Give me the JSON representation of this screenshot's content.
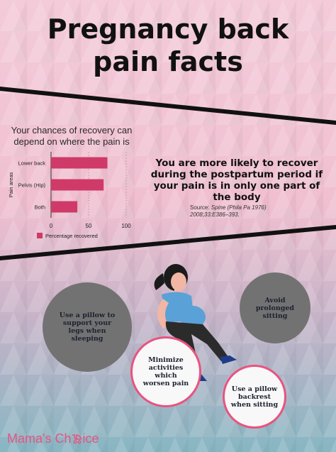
{
  "title": {
    "line1": "Pregnancy back",
    "line2": "pain facts"
  },
  "colors": {
    "bar": "#cf3a68",
    "accent": "#e9537f",
    "gradient_top": "#f0c9d7",
    "gradient_mid": "#cfb6c9",
    "gradient_bottom": "#8fb7c4",
    "dark_circle": "#727272",
    "light_circle": "#f8f8f8"
  },
  "chart_heading": {
    "line1": "Your chances of recovery can",
    "line2": "depend on where the pain is"
  },
  "chart_data": {
    "type": "bar",
    "orientation": "horizontal",
    "categories": [
      "Lower back",
      "Pelvis (Hip)",
      "Both"
    ],
    "values": [
      75,
      70,
      35
    ],
    "ylabel": "Pain areas",
    "xlabel": "",
    "xlim": [
      0,
      100
    ],
    "xticks": [
      "0",
      "50",
      "100"
    ],
    "grid": true,
    "series": [
      {
        "name": "Percentage recovered",
        "values": [
          75,
          70,
          35
        ]
      }
    ],
    "legend": "bottom"
  },
  "fact": {
    "line1": "You are more likely to recover",
    "line2": "during the postpartum period if",
    "line3": "your pain is in only one part of",
    "line4": "the body"
  },
  "source": {
    "label": "Source:",
    "journal": "Spine (Phila Pa 1976)",
    "citation": "2008;33:E386–393."
  },
  "tips": {
    "pillow_legs": {
      "line1": "Use a pillow to",
      "line2": "support your",
      "line3": "legs when",
      "line4": "sleeping"
    },
    "avoid_sitting": {
      "line1": "Avoid",
      "line2": "prolonged",
      "line3": "sitting"
    },
    "minimize": {
      "line1": "Minimize",
      "line2": "activities",
      "line3": "which",
      "line4": "worsen pain"
    },
    "pillow_backrest": {
      "line1": "Use a pillow",
      "line2": "backrest",
      "line3": "when sitting"
    }
  },
  "logo": {
    "part1": "Mama's Ch",
    "icon": "stroller-icon",
    "part2": "ice"
  }
}
